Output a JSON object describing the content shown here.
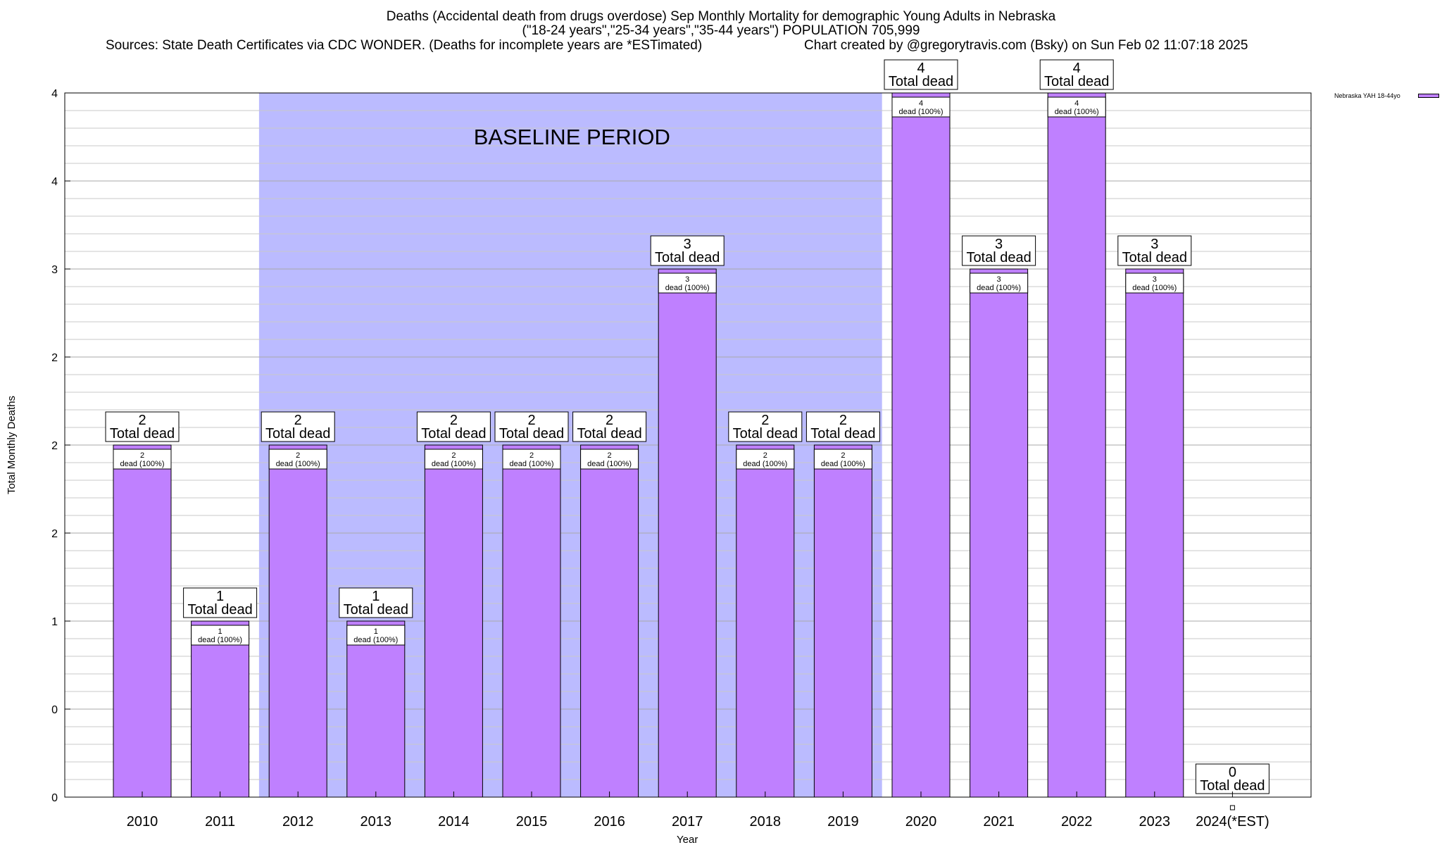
{
  "header": {
    "title_line1": "Deaths (Accidental death from drugs overdose) Sep Monthly Mortality for demographic Young Adults in Nebraska",
    "title_line2": "(\"18-24 years\",\"25-34 years\",\"35-44 years\") POPULATION 705,999",
    "sources": "Sources: State Death Certificates via CDC WONDER. (Deaths for incomplete years are *ESTimated)",
    "credit": "Chart created by @gregorytravis.com (Bsky) on Sun Feb 02 11:07:18 2025"
  },
  "chart_data": {
    "type": "bar",
    "title": "Deaths (Accidental death from drugs overdose) Sep Monthly Mortality for demographic Young Adults in Nebraska",
    "xlabel": "Year",
    "ylabel": "Total Monthly Deaths",
    "ylim": [
      0,
      4
    ],
    "ytick_labels": [
      "0",
      "0",
      "1",
      "2",
      "2",
      "2",
      "3",
      "4",
      "4"
    ],
    "categories": [
      "2010",
      "2011",
      "2012",
      "2013",
      "2014",
      "2015",
      "2016",
      "2017",
      "2018",
      "2019",
      "2020",
      "2021",
      "2022",
      "2023",
      "2024(*EST)"
    ],
    "series": [
      {
        "name": "Nebraska YAH 18-44yo",
        "color": "#bf80ff",
        "values": [
          2,
          1,
          2,
          1,
          2,
          2,
          2,
          3,
          2,
          2,
          4,
          3,
          4,
          3,
          0
        ]
      }
    ],
    "total_labels": [
      "2",
      "1",
      "2",
      "1",
      "2",
      "2",
      "2",
      "3",
      "2",
      "2",
      "4",
      "3",
      "4",
      "3",
      "0"
    ],
    "inner_labels": [
      "2",
      "1",
      "2",
      "1",
      "2",
      "2",
      "2",
      "3",
      "2",
      "2",
      "4",
      "3",
      "4",
      "3",
      ""
    ],
    "total_caption": "Total dead",
    "inner_caption": "dead (100%)",
    "baseline": {
      "label": "BASELINE PERIOD",
      "from": "2012",
      "to": "2019",
      "color": "#bbbbff"
    },
    "grid": true,
    "legend": "top-right"
  }
}
